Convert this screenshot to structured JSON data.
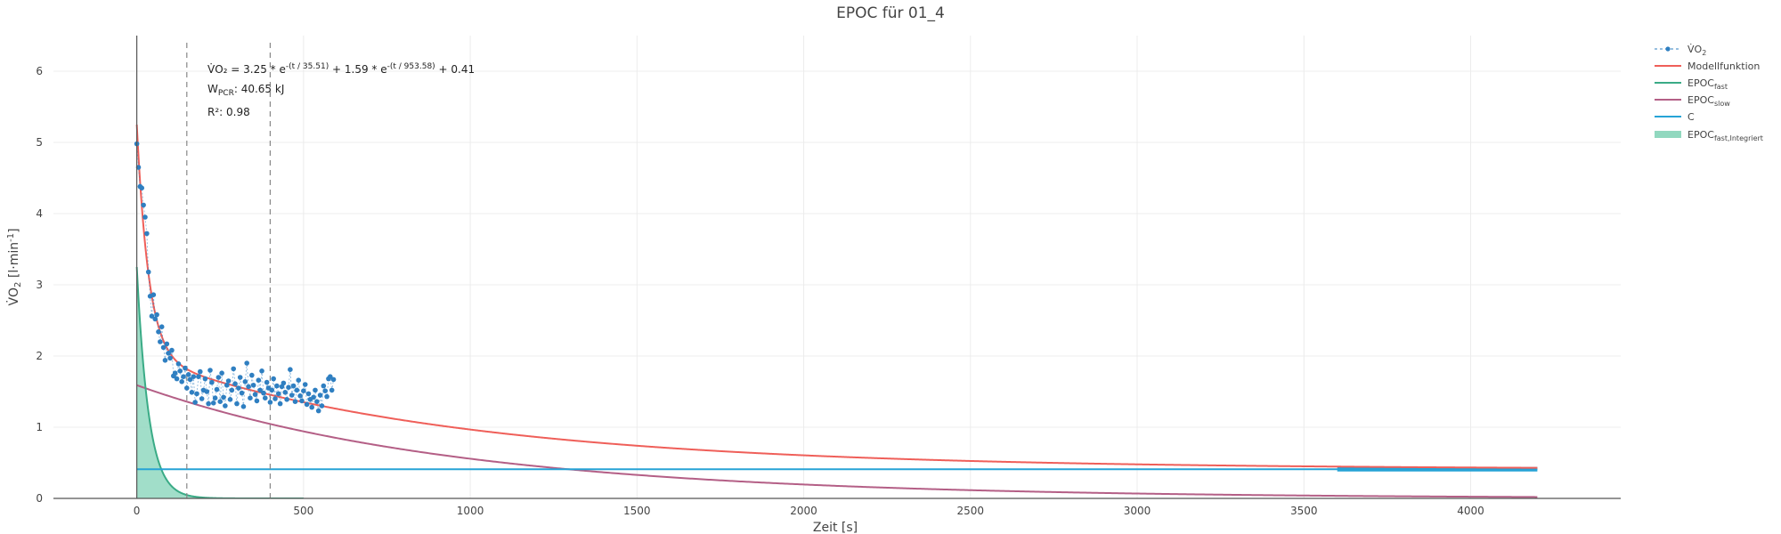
{
  "chart_data": {
    "type": "line",
    "title": "EPOC für 01_4",
    "xlabel": "Zeit [s]",
    "ylabel_main": "V̇O",
    "ylabel_sub": "2",
    "ylabel_unit": " [l·min",
    "ylabel_sup": "-1",
    "ylabel_end": "]",
    "xlim": [
      -250,
      4450
    ],
    "ylim": [
      0,
      6.5
    ],
    "x_ticks": [
      0,
      500,
      1000,
      1500,
      2000,
      2500,
      3000,
      3500,
      4000
    ],
    "y_ticks": [
      0,
      1,
      2,
      3,
      4,
      5,
      6
    ],
    "grid": true,
    "legend_position": "top-right",
    "model": {
      "a": 3.25,
      "tau_fast": 35.51,
      "b": 1.59,
      "tau_slow": 953.58,
      "c": 0.41,
      "x_end": 4200
    },
    "vlines": [
      150,
      400
    ],
    "legend": [
      {
        "id": "vo2",
        "label": "V̇O",
        "sub": "2",
        "color": "#2f7fc1",
        "style": "dots-dash"
      },
      {
        "id": "model",
        "label": "Modellfunktion",
        "sub": "",
        "color": "#ef5f59",
        "style": "line"
      },
      {
        "id": "fast",
        "label": "EPOC",
        "sub": "fast",
        "color": "#3aab86",
        "style": "line"
      },
      {
        "id": "slow",
        "label": "EPOC",
        "sub": "slow",
        "color": "#b45f86",
        "style": "line"
      },
      {
        "id": "c",
        "label": "C",
        "sub": "",
        "color": "#26a3d6",
        "style": "line"
      },
      {
        "id": "fastint",
        "label": "EPOC",
        "sub": "fast,Integriert",
        "color": "#91d8bf",
        "style": "band"
      }
    ],
    "annotations": {
      "eq_prefix": "V̇O₂ = 3.25 * e",
      "eq_sup1": "-(t / 35.51)",
      "eq_mid": " + 1.59 * e",
      "eq_sup2": "-(t / 953.58)",
      "eq_suffix": " + 0.41",
      "w_label": "W",
      "w_sub": "PCR",
      "w_value": ": 40.65 kJ",
      "r2": "R²: 0.98"
    },
    "vo2_series": {
      "x": [
        0,
        5,
        10,
        15,
        20,
        25,
        30,
        35,
        40,
        45,
        50,
        55,
        60,
        65,
        70,
        75,
        80,
        85,
        90,
        95,
        100,
        105,
        110,
        115,
        120,
        125,
        130,
        135,
        140,
        145,
        150,
        155,
        160,
        165,
        170,
        175,
        180,
        185,
        190,
        195,
        200,
        205,
        210,
        215,
        220,
        225,
        230,
        235,
        240,
        245,
        250,
        255,
        260,
        265,
        270,
        275,
        280,
        285,
        290,
        295,
        300,
        305,
        310,
        315,
        320,
        325,
        330,
        335,
        340,
        345,
        350,
        355,
        360,
        365,
        370,
        375,
        380,
        385,
        390,
        395,
        400,
        405,
        410,
        415,
        420,
        425,
        430,
        435,
        440,
        445,
        450,
        455,
        460,
        465,
        470,
        475,
        480,
        485,
        490,
        495,
        500,
        505,
        510,
        515,
        520,
        525,
        530,
        535,
        540,
        545,
        550,
        555,
        560,
        565,
        570,
        575,
        580,
        585,
        590
      ],
      "y": [
        4.98,
        4.65,
        4.38,
        4.36,
        4.12,
        3.95,
        3.72,
        3.18,
        2.84,
        2.56,
        2.86,
        2.52,
        2.58,
        2.34,
        2.2,
        2.41,
        2.12,
        1.94,
        2.17,
        2.04,
        1.97,
        2.08,
        1.72,
        1.76,
        1.68,
        1.89,
        1.79,
        1.64,
        1.71,
        1.83,
        1.55,
        1.74,
        1.67,
        1.49,
        1.71,
        1.35,
        1.47,
        1.71,
        1.78,
        1.4,
        1.52,
        1.68,
        1.5,
        1.33,
        1.8,
        1.63,
        1.34,
        1.41,
        1.53,
        1.7,
        1.36,
        1.76,
        1.42,
        1.3,
        1.59,
        1.65,
        1.39,
        1.52,
        1.82,
        1.61,
        1.33,
        1.55,
        1.7,
        1.48,
        1.29,
        1.64,
        1.9,
        1.57,
        1.41,
        1.73,
        1.59,
        1.46,
        1.37,
        1.66,
        1.52,
        1.79,
        1.48,
        1.41,
        1.63,
        1.55,
        1.35,
        1.52,
        1.68,
        1.4,
        1.58,
        1.47,
        1.33,
        1.57,
        1.62,
        1.49,
        1.39,
        1.56,
        1.81,
        1.45,
        1.58,
        1.36,
        1.52,
        1.66,
        1.44,
        1.37,
        1.51,
        1.6,
        1.32,
        1.47,
        1.39,
        1.28,
        1.42,
        1.52,
        1.36,
        1.23,
        1.45,
        1.3,
        1.58,
        1.51,
        1.43,
        1.68,
        1.71,
        1.52,
        1.67
      ]
    },
    "c_thick_x": [
      3600,
      4200
    ]
  }
}
